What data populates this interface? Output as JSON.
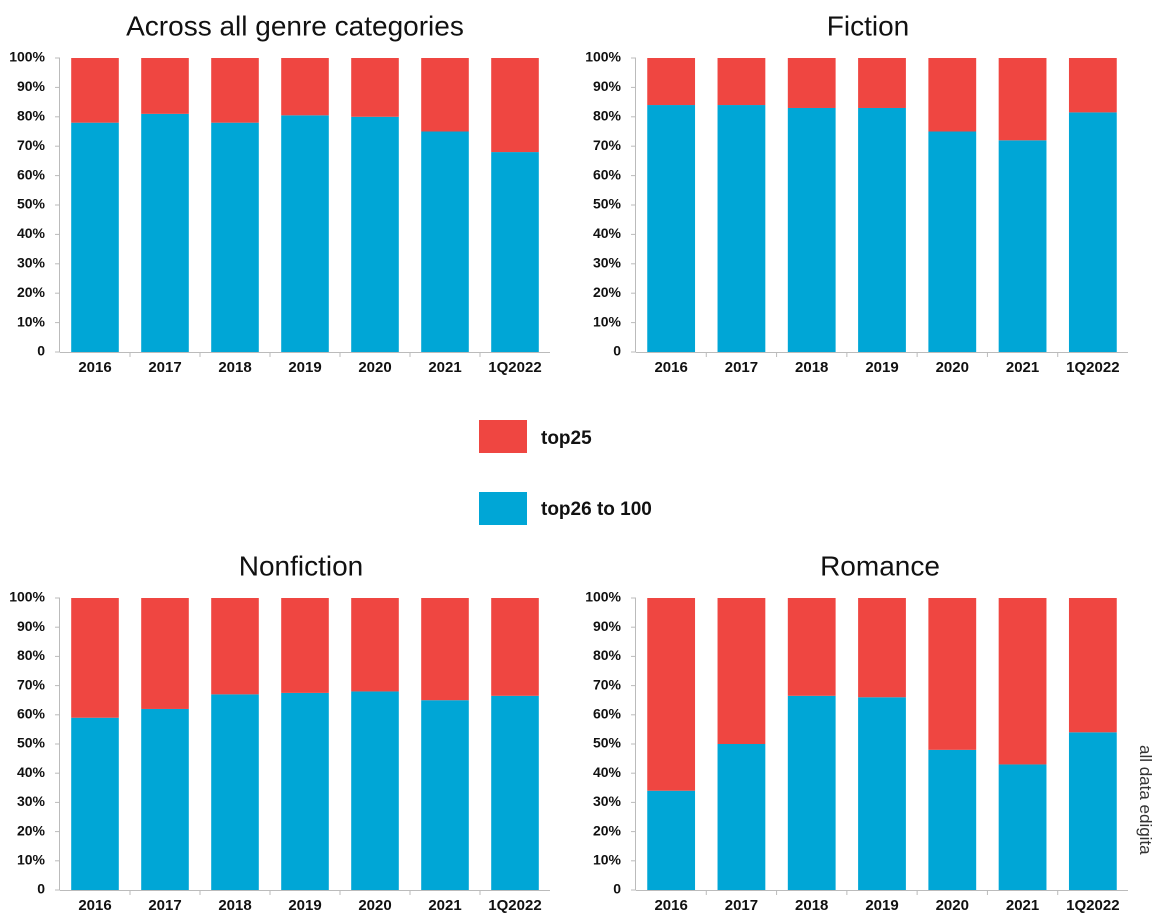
{
  "chart_data": [
    {
      "type": "bar",
      "stacked": true,
      "title": "Across all genre categories",
      "categories": [
        "2016",
        "2017",
        "2018",
        "2019",
        "2020",
        "2021",
        "1Q2022"
      ],
      "series": [
        {
          "name": "top26 to 100",
          "values": [
            78,
            81,
            78,
            80.5,
            80,
            75,
            68
          ]
        },
        {
          "name": "top25",
          "values": [
            22,
            19,
            22,
            19.5,
            20,
            25,
            32
          ]
        }
      ],
      "y_ticks": [
        "0",
        "10%",
        "20%",
        "30%",
        "40%",
        "50%",
        "60%",
        "70%",
        "80%",
        "90%",
        "100%"
      ],
      "ylim": [
        0,
        100
      ]
    },
    {
      "type": "bar",
      "stacked": true,
      "title": "Fiction",
      "categories": [
        "2016",
        "2017",
        "2018",
        "2019",
        "2020",
        "2021",
        "1Q2022"
      ],
      "series": [
        {
          "name": "top26 to 100",
          "values": [
            84,
            84,
            83,
            83,
            75,
            72,
            81.5
          ]
        },
        {
          "name": "top25",
          "values": [
            16,
            16,
            17,
            17,
            25,
            28,
            18.5
          ]
        }
      ],
      "y_ticks": [
        "0",
        "10%",
        "20%",
        "30%",
        "40%",
        "50%",
        "60%",
        "70%",
        "80%",
        "90%",
        "100%"
      ],
      "ylim": [
        0,
        100
      ]
    },
    {
      "type": "bar",
      "stacked": true,
      "title": "Nonfiction",
      "categories": [
        "2016",
        "2017",
        "2018",
        "2019",
        "2020",
        "2021",
        "1Q2022"
      ],
      "series": [
        {
          "name": "top26 to 100",
          "values": [
            59,
            62,
            67,
            67.5,
            68,
            65,
            66.5
          ]
        },
        {
          "name": "top25",
          "values": [
            41,
            38,
            33,
            32.5,
            32,
            35,
            33.5
          ]
        }
      ],
      "y_ticks": [
        "0",
        "10%",
        "20%",
        "30%",
        "40%",
        "50%",
        "60%",
        "70%",
        "80%",
        "90%",
        "100%"
      ],
      "ylim": [
        0,
        100
      ]
    },
    {
      "type": "bar",
      "stacked": true,
      "title": "Romance",
      "categories": [
        "2016",
        "2017",
        "2018",
        "2019",
        "2020",
        "2021",
        "1Q2022"
      ],
      "series": [
        {
          "name": "top26 to 100",
          "values": [
            34,
            50,
            66.5,
            66,
            48,
            43,
            54
          ]
        },
        {
          "name": "top25",
          "values": [
            66,
            50,
            33.5,
            34,
            52,
            57,
            46
          ]
        }
      ],
      "y_ticks": [
        "0",
        "10%",
        "20%",
        "30%",
        "40%",
        "50%",
        "60%",
        "70%",
        "80%",
        "90%",
        "100%"
      ],
      "ylim": [
        0,
        100
      ]
    }
  ],
  "legend": [
    {
      "label": "top25",
      "color": "#ef4641"
    },
    {
      "label": "top26 to 100",
      "color": "#00a6d6"
    }
  ],
  "colors": {
    "top25": "#ef4641",
    "top26_to_100": "#00a6d6",
    "axis": "#bbbbbb"
  },
  "source_note": "all data edigita"
}
